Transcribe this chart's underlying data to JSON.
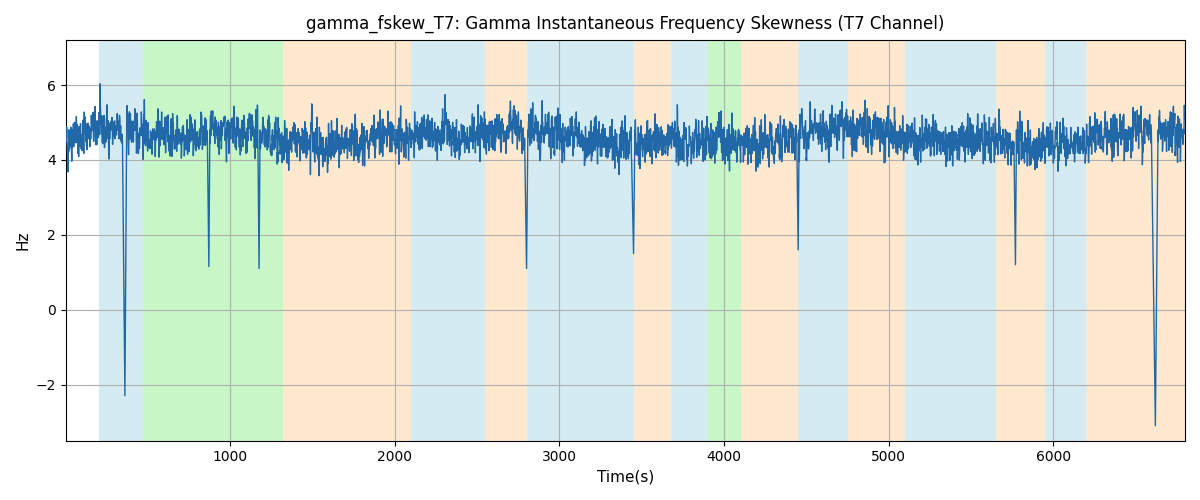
{
  "title": "gamma_fskew_T7: Gamma Instantaneous Frequency Skewness (T7 Channel)",
  "xlabel": "Time(s)",
  "ylabel": "Hz",
  "line_color": "#2068a8",
  "line_width": 1.0,
  "xlim": [
    0,
    6800
  ],
  "ylim": [
    -3.5,
    7.2
  ],
  "yticks": [
    -2,
    0,
    2,
    4,
    6
  ],
  "xticks": [
    1000,
    2000,
    3000,
    4000,
    5000,
    6000
  ],
  "background_color": "#ffffff",
  "grid_color": "#b0b0b0",
  "figsize": [
    12,
    5
  ],
  "dpi": 100,
  "seed": 42,
  "n_points": 6800,
  "total_time": 6800,
  "bands": [
    {
      "start": 200,
      "end": 470,
      "color": "#add8e6",
      "alpha": 0.5
    },
    {
      "start": 470,
      "end": 1320,
      "color": "#90ee90",
      "alpha": 0.5
    },
    {
      "start": 1320,
      "end": 2100,
      "color": "#ffd59e",
      "alpha": 0.5
    },
    {
      "start": 2100,
      "end": 2550,
      "color": "#add8e6",
      "alpha": 0.5
    },
    {
      "start": 2550,
      "end": 2800,
      "color": "#ffd59e",
      "alpha": 0.5
    },
    {
      "start": 2800,
      "end": 3450,
      "color": "#add8e6",
      "alpha": 0.5
    },
    {
      "start": 3450,
      "end": 3680,
      "color": "#ffd59e",
      "alpha": 0.5
    },
    {
      "start": 3680,
      "end": 3900,
      "color": "#add8e6",
      "alpha": 0.5
    },
    {
      "start": 3900,
      "end": 4100,
      "color": "#90ee90",
      "alpha": 0.5
    },
    {
      "start": 4100,
      "end": 4450,
      "color": "#ffd59e",
      "alpha": 0.5
    },
    {
      "start": 4450,
      "end": 4750,
      "color": "#add8e6",
      "alpha": 0.5
    },
    {
      "start": 4750,
      "end": 5100,
      "color": "#ffd59e",
      "alpha": 0.5
    },
    {
      "start": 5100,
      "end": 5650,
      "color": "#add8e6",
      "alpha": 0.5
    },
    {
      "start": 5650,
      "end": 5950,
      "color": "#ffd59e",
      "alpha": 0.5
    },
    {
      "start": 5950,
      "end": 6200,
      "color": "#add8e6",
      "alpha": 0.5
    },
    {
      "start": 6200,
      "end": 6800,
      "color": "#ffd59e",
      "alpha": 0.5
    }
  ]
}
